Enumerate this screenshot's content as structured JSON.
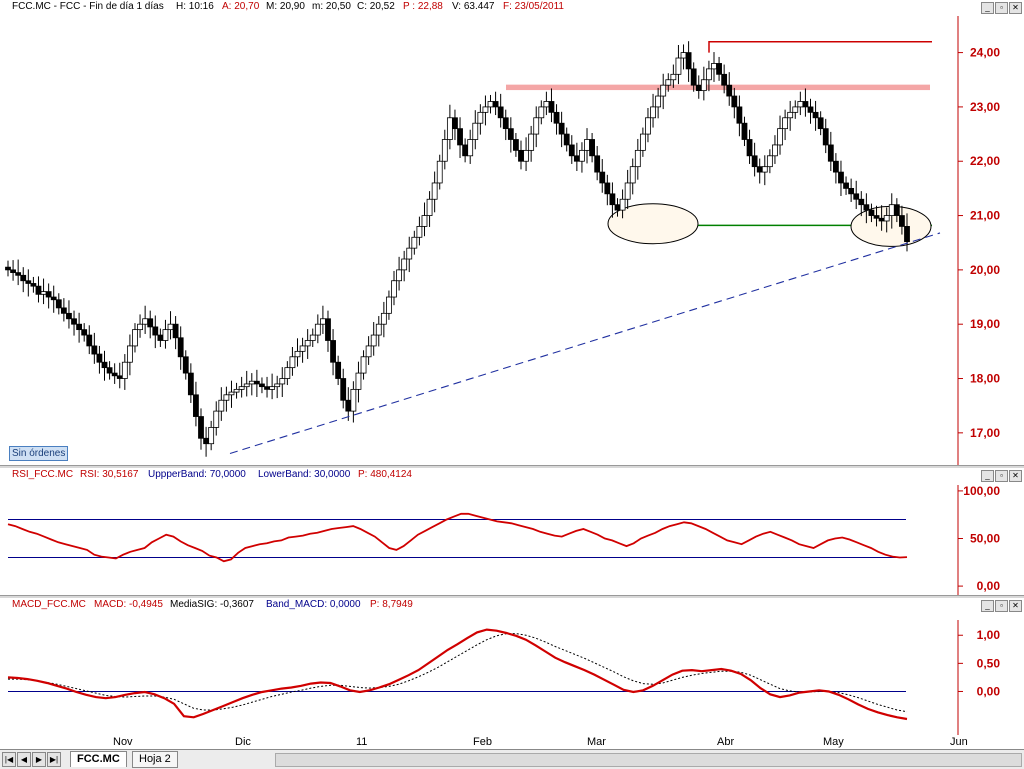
{
  "price_panel": {
    "header": [
      {
        "text": "FCC.MC - FCC - Fin de día 1 días",
        "color": "#000000"
      },
      {
        "text": "H: 10:16",
        "color": "#000000"
      },
      {
        "text": "A: 20,70",
        "color": "#c00000"
      },
      {
        "text": "M: 20,90",
        "color": "#000000"
      },
      {
        "text": "m: 20,50",
        "color": "#000000"
      },
      {
        "text": "C: 20,52",
        "color": "#000000"
      },
      {
        "text": "P : 22,88",
        "color": "#c00000"
      },
      {
        "text": "V: 63.447",
        "color": "#000000"
      },
      {
        "text": "F: 23/05/2011",
        "color": "#c00000"
      }
    ],
    "badge": "Sin órdenes"
  },
  "rsi_panel": {
    "header": [
      {
        "text": "RSI_FCC.MC",
        "color": "#c00000"
      },
      {
        "text": "RSI: 30,5167",
        "color": "#c00000"
      },
      {
        "text": "UppperBand: 70,0000",
        "color": "#00008b"
      },
      {
        "text": "LowerBand: 30,0000",
        "color": "#00008b"
      },
      {
        "text": "P: 480,4124",
        "color": "#c00000"
      }
    ]
  },
  "macd_panel": {
    "header": [
      {
        "text": "MACD_FCC.MC",
        "color": "#c00000"
      },
      {
        "text": "MACD: -0,4945",
        "color": "#c00000"
      },
      {
        "text": "MediaSIG: -0,3607",
        "color": "#000000"
      },
      {
        "text": "Band_MACD: 0,0000",
        "color": "#00008b"
      },
      {
        "text": "P: 8,7949",
        "color": "#c00000"
      }
    ]
  },
  "time_axis": [
    "Nov",
    "Dic",
    "11",
    "Feb",
    "Mar",
    "Abr",
    "May",
    "Jun"
  ],
  "tabs": [
    {
      "label": "FCC.MC",
      "active": true
    },
    {
      "label": "Hoja 2",
      "active": false
    }
  ],
  "colors": {
    "axis_red": "#c00000",
    "macd": "#d00000",
    "signal": "#000000",
    "band": "#00008b",
    "support": "#008000",
    "resistance_zone": "#f4a6a6"
  },
  "chart_data": [
    {
      "type": "candlestick",
      "name": "FCC.MC",
      "y_ticks": [
        "17,00",
        "18,00",
        "19,00",
        "20,00",
        "21,00",
        "22,00",
        "23,00",
        "24,00"
      ],
      "ylim": [
        16.5,
        24.6
      ],
      "x_range": [
        "2010-10-04",
        "2011-05-23"
      ],
      "close": [
        20.0,
        19.95,
        19.9,
        19.8,
        19.75,
        19.7,
        19.55,
        19.6,
        19.5,
        19.45,
        19.3,
        19.2,
        19.1,
        19.0,
        18.9,
        18.8,
        18.6,
        18.45,
        18.3,
        18.2,
        18.1,
        18.05,
        18.0,
        18.3,
        18.6,
        18.9,
        19.0,
        19.1,
        18.95,
        18.8,
        18.7,
        18.9,
        19.0,
        18.75,
        18.4,
        18.1,
        17.7,
        17.3,
        16.9,
        16.8,
        17.1,
        17.4,
        17.6,
        17.7,
        17.75,
        17.8,
        17.85,
        17.9,
        17.95,
        17.9,
        17.85,
        17.8,
        17.85,
        17.9,
        18.0,
        18.2,
        18.4,
        18.5,
        18.6,
        18.7,
        18.8,
        19.0,
        19.1,
        18.7,
        18.3,
        18.0,
        17.6,
        17.4,
        17.8,
        18.1,
        18.4,
        18.6,
        18.8,
        19.0,
        19.2,
        19.5,
        19.8,
        20.0,
        20.2,
        20.4,
        20.6,
        20.8,
        21.0,
        21.3,
        21.6,
        22.0,
        22.4,
        22.8,
        22.6,
        22.3,
        22.1,
        22.4,
        22.7,
        22.9,
        23.0,
        23.1,
        23.0,
        22.8,
        22.6,
        22.4,
        22.2,
        22.0,
        22.2,
        22.5,
        22.8,
        23.0,
        23.1,
        22.9,
        22.7,
        22.5,
        22.3,
        22.1,
        22.0,
        22.2,
        22.4,
        22.1,
        21.8,
        21.6,
        21.4,
        21.2,
        21.1,
        21.3,
        21.6,
        21.9,
        22.2,
        22.5,
        22.8,
        23.0,
        23.2,
        23.4,
        23.5,
        23.6,
        23.9,
        24.0,
        23.7,
        23.4,
        23.3,
        23.5,
        23.7,
        23.8,
        23.6,
        23.4,
        23.2,
        23.0,
        22.7,
        22.4,
        22.1,
        21.9,
        21.8,
        21.9,
        22.1,
        22.3,
        22.6,
        22.8,
        22.9,
        23.0,
        23.1,
        23.0,
        22.9,
        22.8,
        22.6,
        22.3,
        22.0,
        21.8,
        21.6,
        21.5,
        21.4,
        21.3,
        21.2,
        21.1,
        21.0,
        20.95,
        20.9,
        21.0,
        21.2,
        21.0,
        20.8,
        20.52
      ]
    },
    {
      "type": "line",
      "name": "RSI",
      "y_ticks": [
        "0,00",
        "50,00",
        "100,00"
      ],
      "ylim": [
        -2,
        102
      ],
      "bands": [
        30,
        70
      ],
      "values": [
        65,
        63,
        60,
        57,
        55,
        52,
        49,
        46,
        44,
        42,
        40,
        38,
        33,
        31,
        30,
        29,
        33,
        36,
        38,
        40,
        46,
        50,
        54,
        52,
        47,
        43,
        40,
        37,
        32,
        30,
        26,
        28,
        35,
        40,
        42,
        44,
        45,
        47,
        48,
        51,
        52,
        53,
        55,
        56,
        58,
        60,
        61,
        62,
        63,
        60,
        56,
        52,
        46,
        40,
        38,
        42,
        48,
        54,
        58,
        62,
        66,
        70,
        73,
        76,
        76,
        74,
        72,
        70,
        68,
        67,
        66,
        64,
        62,
        60,
        57,
        55,
        53,
        52,
        55,
        58,
        60,
        57,
        54,
        50,
        48,
        45,
        42,
        45,
        50,
        53,
        56,
        60,
        63,
        65,
        67,
        66,
        63,
        60,
        56,
        52,
        48,
        46,
        44,
        48,
        52,
        55,
        57,
        54,
        51,
        48,
        44,
        42,
        40,
        44,
        48,
        50,
        51,
        49,
        46,
        43,
        40,
        36,
        33,
        31,
        30,
        30.5
      ]
    },
    {
      "type": "line",
      "name": "MACD",
      "y_ticks": [
        "0,00",
        "0,50",
        "1,00"
      ],
      "ylim": [
        -0.65,
        1.2
      ],
      "band": 0,
      "macd": [
        0.25,
        0.24,
        0.22,
        0.19,
        0.15,
        0.1,
        0.05,
        -0.01,
        -0.06,
        -0.1,
        -0.12,
        -0.1,
        -0.06,
        -0.03,
        -0.01,
        -0.05,
        -0.12,
        -0.22,
        -0.44,
        -0.46,
        -0.4,
        -0.33,
        -0.26,
        -0.19,
        -0.12,
        -0.06,
        -0.01,
        0.02,
        0.05,
        0.07,
        0.1,
        0.14,
        0.16,
        0.15,
        0.09,
        0.02,
        -0.01,
        0.02,
        0.07,
        0.13,
        0.21,
        0.29,
        0.38,
        0.5,
        0.62,
        0.74,
        0.84,
        0.95,
        1.05,
        1.1,
        1.08,
        1.04,
        0.99,
        0.92,
        0.82,
        0.71,
        0.6,
        0.52,
        0.45,
        0.38,
        0.3,
        0.21,
        0.12,
        0.03,
        -0.01,
        0.02,
        0.1,
        0.2,
        0.3,
        0.37,
        0.38,
        0.36,
        0.38,
        0.4,
        0.37,
        0.31,
        0.2,
        0.06,
        -0.05,
        -0.1,
        -0.07,
        -0.02,
        0.0,
        0.02,
        0.0,
        -0.06,
        -0.14,
        -0.23,
        -0.31,
        -0.37,
        -0.42,
        -0.46,
        -0.49
      ],
      "signal": [
        0.22,
        0.22,
        0.21,
        0.19,
        0.16,
        0.13,
        0.09,
        0.05,
        0.01,
        -0.03,
        -0.07,
        -0.09,
        -0.1,
        -0.09,
        -0.08,
        -0.08,
        -0.1,
        -0.14,
        -0.22,
        -0.3,
        -0.33,
        -0.33,
        -0.31,
        -0.28,
        -0.24,
        -0.19,
        -0.14,
        -0.09,
        -0.05,
        -0.01,
        0.02,
        0.06,
        0.09,
        0.11,
        0.11,
        0.09,
        0.07,
        0.06,
        0.07,
        0.09,
        0.13,
        0.19,
        0.26,
        0.34,
        0.43,
        0.53,
        0.63,
        0.73,
        0.83,
        0.92,
        0.99,
        1.03,
        1.03,
        1.0,
        0.95,
        0.88,
        0.8,
        0.73,
        0.66,
        0.59,
        0.51,
        0.43,
        0.35,
        0.26,
        0.19,
        0.14,
        0.13,
        0.15,
        0.2,
        0.25,
        0.29,
        0.32,
        0.34,
        0.36,
        0.36,
        0.34,
        0.29,
        0.21,
        0.13,
        0.05,
        0.01,
        -0.01,
        -0.01,
        0.0,
        0.0,
        -0.02,
        -0.06,
        -0.11,
        -0.17,
        -0.23,
        -0.28,
        -0.33,
        -0.36
      ]
    }
  ]
}
